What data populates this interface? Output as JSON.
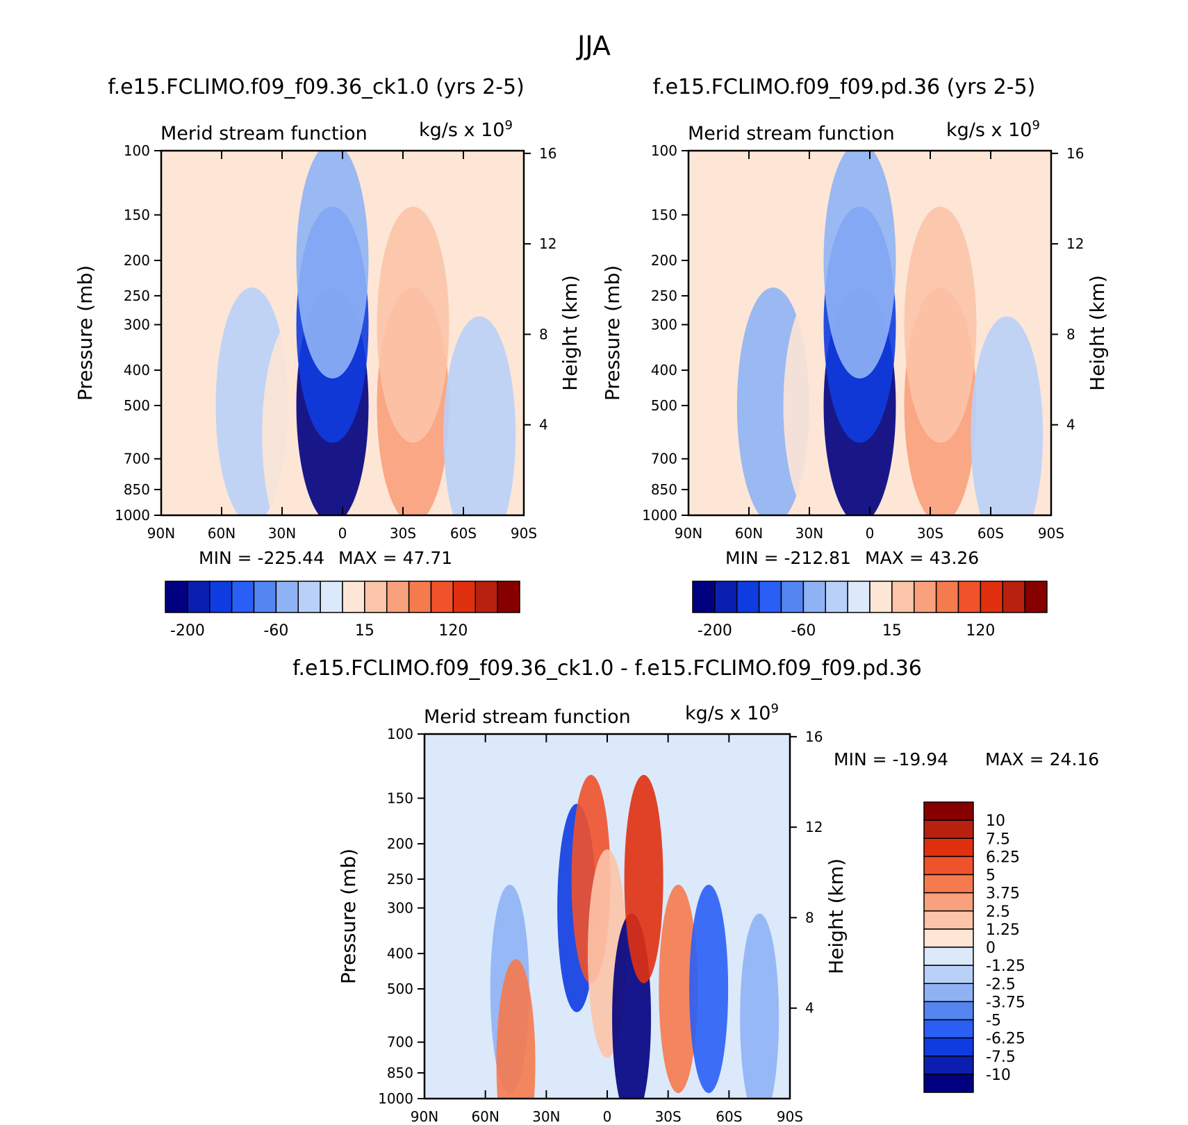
{
  "page_title": "JJA",
  "units_label": "kg/s x 10",
  "units_exp": "9",
  "colors": {
    "panel_scale": [
      "#000080",
      "#0a1fb0",
      "#0f3ce0",
      "#2a5ff5",
      "#5585f0",
      "#8fb2f5",
      "#b9d0f8",
      "#dbe9fb",
      "#fde6d6",
      "#fcc4a8",
      "#f9a07c",
      "#f57a4e",
      "#f0522b",
      "#e03010",
      "#b82010",
      "#870000"
    ],
    "diff_scale": [
      "#870000",
      "#b82010",
      "#e03010",
      "#f0522b",
      "#f57a4e",
      "#f9a07c",
      "#fcc4a8",
      "#fde6d6",
      "#dbe9fb",
      "#b9d0f8",
      "#8fb2f5",
      "#5585f0",
      "#2a5ff5",
      "#0f3ce0",
      "#0a1fb0",
      "#000080"
    ]
  },
  "chart_data": [
    {
      "type": "heatmap",
      "title": "f.e15.FCLIMO.f09_f09.36_ck1.0 (yrs 2-5)",
      "subtitle": "Merid stream function",
      "xlabel": "",
      "ylabel": "Pressure (mb)",
      "y2label": "Height (km)",
      "x_ticks": [
        "90N",
        "60N",
        "30N",
        "0",
        "30S",
        "60S",
        "90S"
      ],
      "y_ticks": [
        "100",
        "150",
        "200",
        "250",
        "300",
        "400",
        "500",
        "700",
        "850",
        "1000"
      ],
      "y2_ticks": [
        "16",
        "12",
        "8",
        "4"
      ],
      "y_scale": "log",
      "ylim": [
        1000,
        100
      ],
      "xlim": [
        90,
        -90
      ],
      "min_label": "MIN = -225.44",
      "max_label": "MAX = 47.71",
      "min": -225.44,
      "max": 47.71,
      "colorbar_labels": [
        "-200",
        "-60",
        "15",
        "120"
      ],
      "cells": [
        {
          "lat": 45,
          "p": 500,
          "level": 6
        },
        {
          "lat": 22,
          "p": 600,
          "level": 8
        },
        {
          "lat": 5,
          "p": 500,
          "level": 0
        },
        {
          "lat": 5,
          "p": 300,
          "level": 2
        },
        {
          "lat": 5,
          "p": 200,
          "level": 5
        },
        {
          "lat": -35,
          "p": 500,
          "level": 10
        },
        {
          "lat": -35,
          "p": 300,
          "level": 9
        },
        {
          "lat": -68,
          "p": 600,
          "level": 6
        }
      ]
    },
    {
      "type": "heatmap",
      "title": "f.e15.FCLIMO.f09_f09.pd.36 (yrs 2-5)",
      "subtitle": "Merid stream function",
      "xlabel": "",
      "ylabel": "Pressure (mb)",
      "y2label": "Height (km)",
      "x_ticks": [
        "90N",
        "60N",
        "30N",
        "0",
        "30S",
        "60S",
        "90S"
      ],
      "y_ticks": [
        "100",
        "150",
        "200",
        "250",
        "300",
        "400",
        "500",
        "700",
        "850",
        "1000"
      ],
      "y2_ticks": [
        "16",
        "12",
        "8",
        "4"
      ],
      "y_scale": "log",
      "ylim": [
        1000,
        100
      ],
      "xlim": [
        90,
        -90
      ],
      "min_label": "MIN = -212.81",
      "max_label": "MAX = 43.26",
      "min": -212.81,
      "max": 43.26,
      "colorbar_labels": [
        "-200",
        "-60",
        "15",
        "120"
      ],
      "cells": [
        {
          "lat": 48,
          "p": 500,
          "level": 5
        },
        {
          "lat": 25,
          "p": 500,
          "level": 8
        },
        {
          "lat": 5,
          "p": 500,
          "level": 0
        },
        {
          "lat": 5,
          "p": 300,
          "level": 2
        },
        {
          "lat": 5,
          "p": 200,
          "level": 5
        },
        {
          "lat": -35,
          "p": 500,
          "level": 10
        },
        {
          "lat": -35,
          "p": 300,
          "level": 9
        },
        {
          "lat": -68,
          "p": 600,
          "level": 6
        }
      ]
    },
    {
      "type": "heatmap",
      "title": "f.e15.FCLIMO.f09_f09.36_ck1.0 - f.e15.FCLIMO.f09_f09.pd.36",
      "subtitle": "Merid stream function",
      "xlabel": "",
      "ylabel": "Pressure (mb)",
      "y2label": "Height (km)",
      "x_ticks": [
        "90N",
        "60N",
        "30N",
        "0",
        "30S",
        "60S",
        "90S"
      ],
      "y_ticks": [
        "100",
        "150",
        "200",
        "250",
        "300",
        "400",
        "500",
        "700",
        "850",
        "1000"
      ],
      "y2_ticks": [
        "16",
        "12",
        "8",
        "4"
      ],
      "y_scale": "log",
      "ylim": [
        1000,
        100
      ],
      "xlim": [
        90,
        -90
      ],
      "min_label": "MIN = -19.94",
      "max_label": "MAX = 24.16",
      "min": -19.94,
      "max": 24.16,
      "colorbar_labels": [
        "10",
        "7.5",
        "6.25",
        "5",
        "3.75",
        "2.5",
        "1.25",
        "0",
        "-1.25",
        "-2.5",
        "-3.75",
        "-5",
        "-6.25",
        "-7.5",
        "-10"
      ],
      "cells": [
        {
          "lat": 48,
          "p": 500,
          "level": 10
        },
        {
          "lat": 45,
          "p": 800,
          "level": 4
        },
        {
          "lat": 15,
          "p": 300,
          "level": 13
        },
        {
          "lat": 8,
          "p": 250,
          "level": 3
        },
        {
          "lat": 0,
          "p": 400,
          "level": 6
        },
        {
          "lat": -12,
          "p": 600,
          "level": 15
        },
        {
          "lat": -18,
          "p": 250,
          "level": 2
        },
        {
          "lat": -35,
          "p": 500,
          "level": 4
        },
        {
          "lat": -50,
          "p": 500,
          "level": 12
        },
        {
          "lat": -75,
          "p": 600,
          "level": 10
        }
      ]
    }
  ]
}
